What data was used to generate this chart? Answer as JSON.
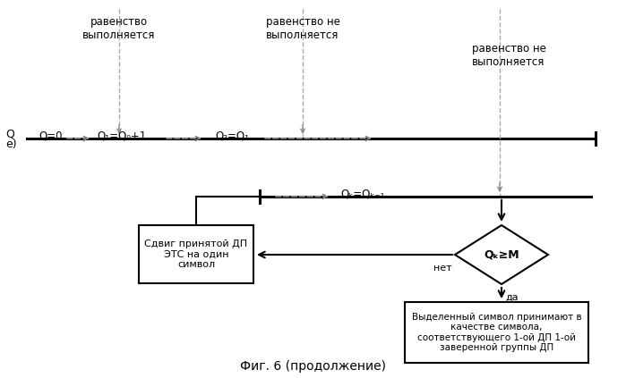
{
  "bg_color": "#ffffff",
  "title": "Фиг. 6 (продолжение)",
  "title_fontsize": 11,
  "font_color": "#000000",
  "text_equality1": "равенство\nвыполняется",
  "text_equality2": "равенство не\nвыполняется",
  "text_equality3": "равенство не\nвыполняется",
  "text_q0": "Q=0",
  "text_q1": "Q₁=Q₀+1",
  "text_q2": "Q₂=Q₁",
  "text_qk": "Qₖ=Qₖ₋₁",
  "text_diamond": "Qₖ≥M",
  "text_no": "нет",
  "text_yes": "да",
  "text_shift_box": "Сдвиг принятой ДП\nЭТС на один\nсимвол",
  "text_result_box": "Выделенный символ принимают в\nкачестве символа,\nсоответствующего 1-ой ДП 1-ой\nзаверенной группы ДП"
}
